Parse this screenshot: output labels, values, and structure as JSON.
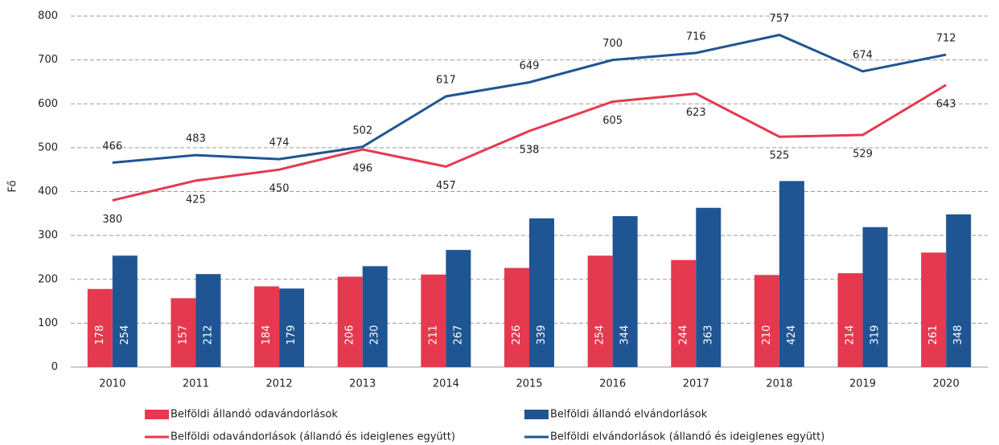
{
  "chart_data": {
    "type": "combo",
    "ylabel": "Fő",
    "categories": [
      "2010",
      "2011",
      "2012",
      "2013",
      "2014",
      "2015",
      "2016",
      "2017",
      "2018",
      "2019",
      "2020"
    ],
    "series": [
      {
        "name": "Belföldi állandó odavándorlások",
        "type": "bar",
        "color": "#e5394f",
        "values": [
          178,
          157,
          184,
          206,
          211,
          226,
          254,
          244,
          210,
          214,
          261
        ]
      },
      {
        "name": "Belföldi állandó elvándorlások",
        "type": "bar",
        "color": "#1f5593",
        "values": [
          254,
          212,
          179,
          230,
          267,
          339,
          344,
          363,
          424,
          319,
          348
        ]
      },
      {
        "name": "Belföldi odavándorlások (állandó és ideiglenes együtt)",
        "type": "line",
        "color": "#e5394f",
        "label_position": "below",
        "values": [
          380,
          425,
          450,
          496,
          457,
          538,
          605,
          623,
          525,
          529,
          643
        ]
      },
      {
        "name": "Belföldi elvándorlások (állandó és ideiglenes együtt)",
        "type": "line",
        "color": "#1f5593",
        "label_position": "above",
        "values": [
          466,
          483,
          474,
          502,
          617,
          649,
          700,
          716,
          757,
          674,
          712
        ]
      }
    ],
    "ylim": [
      0,
      800
    ],
    "yticks": [
      0,
      100,
      200,
      300,
      400,
      500,
      600,
      700,
      800
    ],
    "grid": true,
    "legend": "bottom"
  }
}
